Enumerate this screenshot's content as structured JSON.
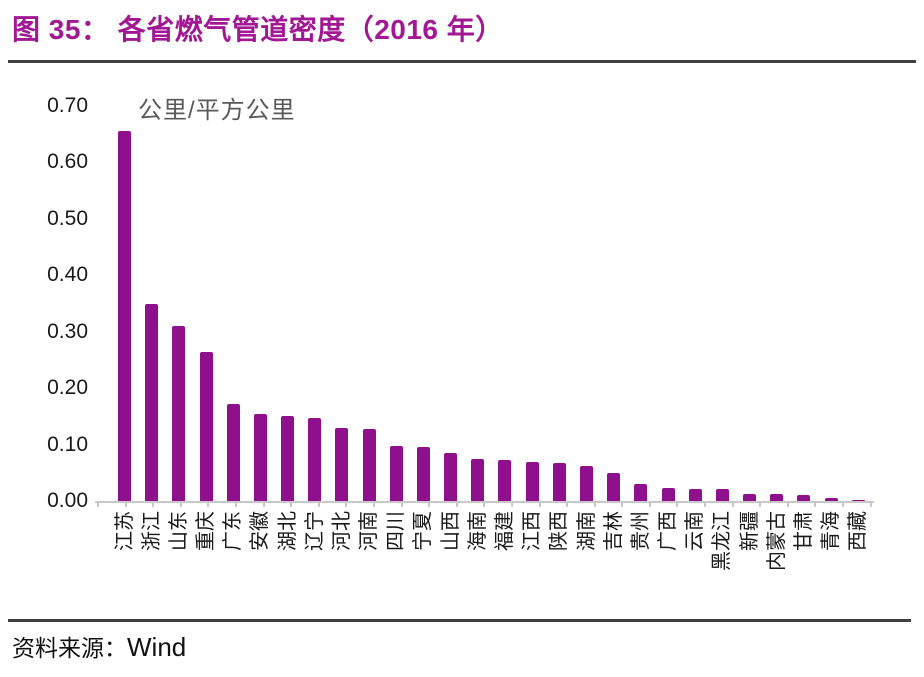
{
  "figure": {
    "title": "图 35： 各省燃气管道密度（2016 年）",
    "source_label": "资料来源：",
    "source_value": "Wind"
  },
  "chart_data": {
    "type": "bar",
    "title": "各省燃气管道密度（2016 年）",
    "unit_label": "公里/平方公里",
    "xlabel": "",
    "ylabel": "公里/平方公里",
    "categories": [
      "江苏",
      "浙江",
      "山东",
      "重庆",
      "广东",
      "安徽",
      "湖北",
      "辽宁",
      "河北",
      "河南",
      "四川",
      "宁夏",
      "山西",
      "海南",
      "福建",
      "江西",
      "陕西",
      "湖南",
      "吉林",
      "贵州",
      "广西",
      "云南",
      "黑龙江",
      "新疆",
      "内蒙古",
      "甘肃",
      "青海",
      "西藏"
    ],
    "values": [
      0.655,
      0.35,
      0.31,
      0.265,
      0.172,
      0.155,
      0.151,
      0.148,
      0.13,
      0.127,
      0.097,
      0.095,
      0.086,
      0.075,
      0.072,
      0.07,
      0.068,
      0.062,
      0.05,
      0.03,
      0.023,
      0.022,
      0.021,
      0.012,
      0.012,
      0.011,
      0.005,
      0.002
    ],
    "ylim": [
      0,
      0.7
    ],
    "ytick_labels": [
      "0.00",
      "0.10",
      "0.20",
      "0.30",
      "0.40",
      "0.50",
      "0.60",
      "0.70"
    ],
    "grid": false,
    "legend": "none",
    "bar_color": "#8E108C",
    "accent_color": "#A21894",
    "axis_color": "#C8C8C8",
    "text_color": "#1A1A1A"
  }
}
